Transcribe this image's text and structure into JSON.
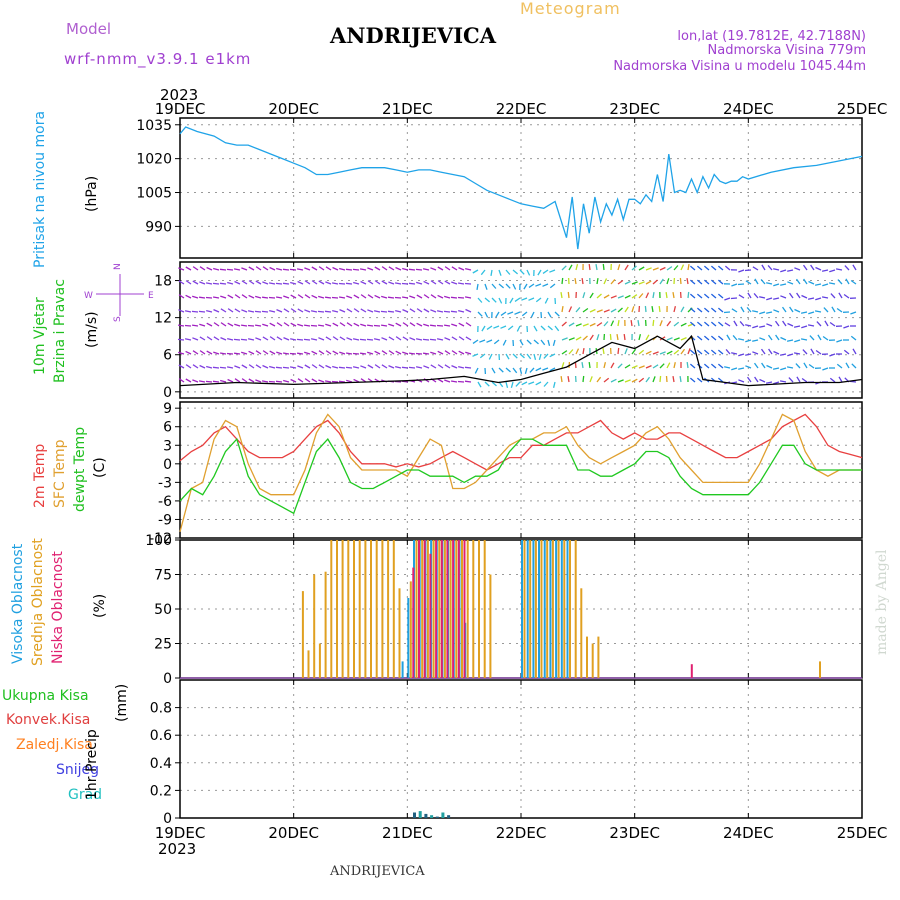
{
  "header": {
    "model_label": "Model",
    "model_name": "wrf-nmm_v3.9.1 e1km",
    "title": "ANDRIJEVICA",
    "product": "Meteogram",
    "lonlat": "lon,lat (19.7812E, 42.7188N)",
    "elevation": "Nadmorska Visina 779m",
    "model_elevation": "Nadmorska Visina u modelu 1045.44m",
    "footer_title": "ANDRIJEVICA",
    "credit": "made by Angel"
  },
  "time_axis": {
    "year": "2023",
    "ticks": [
      "19DEC",
      "20DEC",
      "21DEC",
      "22DEC",
      "23DEC",
      "24DEC",
      "25DEC"
    ]
  },
  "colors": {
    "pressure": "#1fa3e8",
    "temp": "#e84040",
    "sfc_temp": "#e0a030",
    "dewpt": "#20c820",
    "high_cloud": "#20a0e0",
    "mid_cloud": "#e0a020",
    "low_cloud": "#e02070",
    "wind_speed": "#000000",
    "precip_total": "#20c020",
    "precip_conv": "#e04040",
    "precip_frz": "#ff8020",
    "precip_snow": "#4040e0",
    "precip_grad": "#20c0c0"
  },
  "chart_data": [
    {
      "type": "line",
      "panel": "pressure",
      "ylabel_main": "Pritisak na nivou mora",
      "ylabel_unit": "(hPa)",
      "y_ticks": [
        "1035",
        "1020",
        "1005",
        "990"
      ],
      "ylim": [
        976,
        1038
      ],
      "x_days": [
        0,
        0.05,
        0.15,
        0.3,
        0.4,
        0.5,
        0.6,
        0.7,
        0.8,
        0.9,
        1.0,
        1.1,
        1.2,
        1.3,
        1.4,
        1.5,
        1.6,
        1.7,
        1.8,
        1.9,
        2.0,
        2.1,
        2.2,
        2.3,
        2.4,
        2.5,
        2.6,
        2.7,
        2.8,
        2.9,
        3.0,
        3.1,
        3.2,
        3.3,
        3.4,
        3.45,
        3.5,
        3.55,
        3.6,
        3.65,
        3.7,
        3.75,
        3.8,
        3.85,
        3.9,
        3.95,
        4.0,
        4.05,
        4.1,
        4.15,
        4.2,
        4.25,
        4.3,
        4.35,
        4.4,
        4.45,
        4.5,
        4.55,
        4.6,
        4.65,
        4.7,
        4.75,
        4.8,
        4.85,
        4.9,
        4.95,
        5.0,
        5.2,
        5.4,
        5.6,
        5.8,
        6.0
      ],
      "values": [
        1031,
        1034,
        1032,
        1030,
        1027,
        1026,
        1026,
        1024,
        1022,
        1020,
        1018,
        1016,
        1013,
        1013,
        1014,
        1015,
        1016,
        1016,
        1016,
        1015,
        1014,
        1015,
        1015,
        1014,
        1013,
        1012,
        1009,
        1006,
        1004,
        1002,
        1000,
        999,
        998,
        1001,
        985,
        1003,
        980,
        1000,
        987,
        1003,
        992,
        1000,
        995,
        1002,
        993,
        1002,
        1002,
        1000,
        1004,
        1001,
        1013,
        1001,
        1022,
        1005,
        1006,
        1005,
        1011,
        1005,
        1012,
        1007,
        1013,
        1010,
        1009,
        1010,
        1010,
        1012,
        1011,
        1014,
        1016,
        1017,
        1019,
        1021
      ]
    },
    {
      "type": "line",
      "panel": "wind",
      "ylabel_a": "10m Vjetar",
      "ylabel_b": "Brzina i Pravac",
      "ylabel_unit": "(m/s)",
      "compass": [
        "N",
        "S",
        "W",
        "E"
      ],
      "y_ticks": [
        "18",
        "12",
        "6",
        "0"
      ],
      "ylim": [
        -1,
        21
      ],
      "x_days": [
        0,
        0.5,
        1.0,
        1.5,
        2.0,
        2.2,
        2.5,
        2.8,
        3.0,
        3.2,
        3.4,
        3.6,
        3.8,
        4.0,
        4.2,
        4.4,
        4.5,
        4.6,
        4.8,
        5.0,
        5.2,
        5.5,
        5.8,
        6.0
      ],
      "values": [
        1,
        1.5,
        1.2,
        1.5,
        1.8,
        2,
        2.5,
        1.5,
        2,
        3,
        4,
        6,
        8,
        7,
        9,
        7,
        9,
        2,
        1.5,
        1,
        1.2,
        1.5,
        1.5,
        2
      ]
    },
    {
      "type": "line",
      "panel": "temperature",
      "ylabel_a": "2m Temp",
      "ylabel_b": "SFC Temp",
      "ylabel_c": "dewpt Temp",
      "ylabel_unit": "(C)",
      "y_ticks": [
        "9",
        "6",
        "3",
        "0",
        "-3",
        "-6",
        "-9",
        "-12"
      ],
      "ylim": [
        -12,
        10
      ],
      "x_days": [
        0,
        0.1,
        0.2,
        0.3,
        0.4,
        0.5,
        0.6,
        0.7,
        0.8,
        0.9,
        1.0,
        1.1,
        1.2,
        1.3,
        1.4,
        1.5,
        1.6,
        1.7,
        1.8,
        1.9,
        2.0,
        2.1,
        2.2,
        2.3,
        2.4,
        2.5,
        2.6,
        2.7,
        2.8,
        2.9,
        3.0,
        3.1,
        3.2,
        3.3,
        3.4,
        3.5,
        3.6,
        3.7,
        3.8,
        3.9,
        4.0,
        4.1,
        4.2,
        4.3,
        4.4,
        4.5,
        4.6,
        4.7,
        4.8,
        4.9,
        5.0,
        5.1,
        5.2,
        5.3,
        5.4,
        5.5,
        5.6,
        5.7,
        5.8,
        5.9,
        6.0
      ],
      "series": [
        {
          "name": "2m Temp",
          "color": "#e84040",
          "values": [
            0.5,
            2,
            3,
            5,
            6,
            4,
            2,
            1,
            1,
            1,
            2,
            4,
            6,
            7,
            5,
            2,
            0,
            0,
            0,
            -0.5,
            0,
            -0.5,
            0,
            1,
            2,
            1,
            0,
            -1,
            0,
            1,
            1,
            3,
            3,
            4,
            5,
            5,
            6,
            7,
            5,
            4,
            5,
            4,
            4,
            5,
            5,
            4,
            3,
            2,
            1,
            1,
            2,
            3,
            4,
            6,
            7,
            8,
            6,
            3,
            2,
            1.5,
            1
          ]
        },
        {
          "name": "SFC Temp",
          "color": "#e0a030",
          "values": [
            -11,
            -4,
            -3,
            4,
            7,
            6,
            0,
            -4,
            -5,
            -5,
            -5,
            -1,
            5,
            8,
            6,
            1,
            -1,
            -1,
            -1,
            -1,
            -2,
            1,
            4,
            3,
            -4,
            -4,
            -3,
            -1,
            1,
            3,
            4,
            4,
            5,
            5,
            6,
            3,
            1,
            0,
            1,
            2,
            3,
            5,
            6,
            4,
            1,
            -1,
            -3,
            -3,
            -3,
            -3,
            -3,
            0,
            4,
            8,
            7,
            2,
            -1,
            -2,
            -1,
            -1,
            -1
          ]
        },
        {
          "name": "dewpt Temp",
          "color": "#20c820",
          "values": [
            -6,
            -4,
            -5,
            -2,
            2,
            4,
            -2,
            -5,
            -6,
            -7,
            -8,
            -3,
            2,
            4,
            1,
            -3,
            -4,
            -4,
            -3,
            -2,
            -1,
            -1,
            -2,
            -2,
            -2,
            -3,
            -2,
            -2,
            -1,
            2,
            4,
            4,
            3,
            3,
            3,
            -1,
            -1,
            -2,
            -2,
            -1,
            0,
            2,
            2,
            1,
            -2,
            -4,
            -5,
            -5,
            -5,
            -5,
            -5,
            -3,
            0,
            3,
            3,
            0,
            -1,
            -1,
            -1,
            -1,
            -1
          ]
        }
      ]
    },
    {
      "type": "bar",
      "panel": "clouds",
      "ylabel_a": "Visoka Oblacnost",
      "ylabel_b": "Srednja Oblacnost",
      "ylabel_c": "Niska Oblacnost",
      "ylabel_unit": "(%)",
      "y_ticks": [
        "100",
        "75",
        "50",
        "25",
        "0"
      ],
      "ylim": [
        0,
        100
      ],
      "series": [
        {
          "name": "Visoka Oblacnost",
          "color": "#20a0e0",
          "x_days": [
            1.95,
            2.0,
            2.05,
            2.1,
            2.15,
            2.2,
            2.25,
            2.3,
            2.35,
            2.4,
            2.45,
            2.5,
            3.0,
            3.05,
            3.1,
            3.15,
            3.2,
            3.25,
            3.3,
            3.35,
            3.4
          ],
          "values": [
            12,
            58,
            100,
            100,
            100,
            100,
            100,
            100,
            100,
            100,
            100,
            40,
            100,
            100,
            100,
            100,
            100,
            100,
            100,
            100,
            100
          ]
        },
        {
          "name": "Srednja Oblacnost",
          "color": "#e0a020",
          "x_days": [
            1.05,
            1.1,
            1.15,
            1.2,
            1.25,
            1.3,
            1.35,
            1.4,
            1.45,
            1.5,
            1.55,
            1.6,
            1.65,
            1.7,
            1.75,
            1.8,
            1.85,
            1.9,
            2.0,
            2.05,
            2.1,
            2.15,
            2.2,
            2.25,
            2.3,
            2.35,
            2.4,
            2.45,
            2.5,
            2.55,
            2.6,
            2.65,
            2.7,
            3.0,
            3.05,
            3.1,
            3.15,
            3.2,
            3.25,
            3.3,
            3.35,
            3.4,
            3.45,
            3.5,
            3.55,
            3.6,
            3.65,
            5.6
          ],
          "values": [
            63,
            20,
            75,
            25,
            77,
            100,
            100,
            100,
            100,
            100,
            100,
            100,
            100,
            100,
            100,
            100,
            100,
            65,
            70,
            100,
            100,
            100,
            100,
            100,
            100,
            100,
            100,
            100,
            100,
            100,
            100,
            100,
            75,
            100,
            100,
            100,
            100,
            100,
            100,
            100,
            100,
            100,
            100,
            65,
            30,
            25,
            30,
            12
          ]
        },
        {
          "name": "Niska Oblacnost",
          "color": "#e02070",
          "x_days": [
            2.0,
            2.05,
            2.1,
            2.15,
            2.2,
            2.25,
            2.3,
            2.35,
            2.4,
            2.45,
            4.45
          ],
          "values": [
            80,
            100,
            100,
            90,
            100,
            100,
            100,
            100,
            100,
            100,
            10
          ]
        }
      ]
    },
    {
      "type": "bar",
      "panel": "precipitation",
      "ylabel_list": [
        "Ukupna Kisa",
        "Konvek.Kisa",
        "Zaledj.Kisa",
        "Snijeg",
        "Grad"
      ],
      "ylabel_main": "1hr Precip",
      "ylabel_unit": "(mm)",
      "y_ticks": [
        "0.8",
        "0.6",
        "0.4",
        "0.2",
        "0"
      ],
      "ylim": [
        0,
        1
      ],
      "x_days": [
        2.05,
        2.1,
        2.15,
        2.2,
        2.25,
        2.3,
        2.35
      ],
      "values": [
        0.04,
        0.05,
        0.03,
        0.02,
        0.01,
        0.04,
        0.02
      ]
    }
  ]
}
